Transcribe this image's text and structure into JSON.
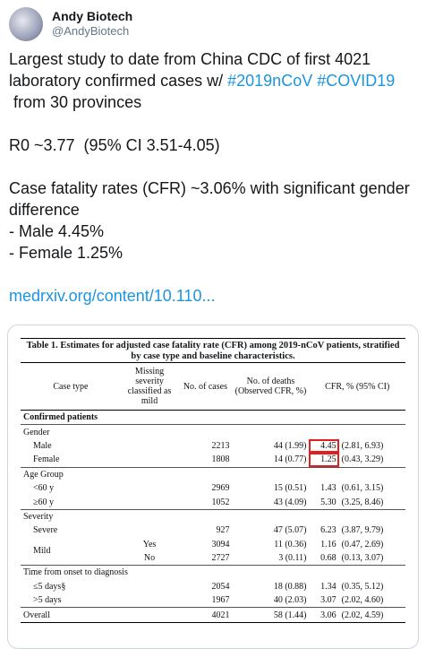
{
  "tweet": {
    "name": "Andy Biotech",
    "handle": "@AndyBiotech",
    "intro": {
      "start": "Largest study to date from China CDC of first 4021",
      "middle": "laboratory confirmed cases w/",
      "hashtags": [
        "#2019nCoV",
        "#COVID19"
      ],
      "end": "from 30 provinces"
    },
    "r0": "R0 ~3.77  (95% CI 3.51-4.05)",
    "cfr": "Case fatality rates (CFR) ~3.06% with significant gender difference",
    "male": "- Male 4.45%",
    "female": "- Female 1.25%",
    "link": "medrxiv.org/content/10.110..."
  },
  "table": {
    "title": "Table 1. Estimates for adjusted case fatality rate (CFR) among 2019-nCoV patients, stratified by case type and baseline characteristics.",
    "headers": [
      "Case type",
      "Missing severity classified as mild",
      "No. of cases",
      "No. of deaths (Observed CFR, %)",
      "CFR, % (95% CI)"
    ],
    "section": "Confirmed patients",
    "groups": [
      {
        "name": "Gender",
        "rows": [
          {
            "label": "Male",
            "cases": "2213",
            "deaths": "44 (1.99)",
            "cfr": "4.45",
            "ci": "(2.81, 6.93)",
            "highlight": true
          },
          {
            "label": "Female",
            "cases": "1808",
            "deaths": "14 (0.77)",
            "cfr": "1.25",
            "ci": "(0.43, 3.29)",
            "highlight": true
          }
        ]
      },
      {
        "name": "Age Group",
        "rows": [
          {
            "label": "<60 y",
            "cases": "2969",
            "deaths": "15 (0.51)",
            "cfr": "1.43",
            "ci": "(0.61, 3.15)"
          },
          {
            "label": "≥60 y",
            "cases": "1052",
            "deaths": "43 (4.09)",
            "cfr": "5.30",
            "ci": "(3.25, 8.46)"
          }
        ]
      },
      {
        "name": "Severity",
        "rows": [
          {
            "label": "Severe",
            "cases": "927",
            "deaths": "47 (5.07)",
            "cfr": "6.23",
            "ci": "(3.87, 9.79)"
          },
          {
            "label": "Mild",
            "sub": [
              {
                "missing": "Yes",
                "cases": "3094",
                "deaths": "11 (0.36)",
                "cfr": "1.16",
                "ci": "(0.47, 2.69)"
              },
              {
                "missing": "No",
                "cases": "2727",
                "deaths": "3 (0.11)",
                "cfr": "0.68",
                "ci": "(0.13, 3.07)"
              }
            ]
          }
        ]
      },
      {
        "name": "Time from onset to diagnosis",
        "rows": [
          {
            "label": "≤5 days§",
            "cases": "2054",
            "deaths": "18 (0.88)",
            "cfr": "1.34",
            "ci": "(0.35, 5.12)"
          },
          {
            "label": ">5 days",
            "cases": "1967",
            "deaths": "40 (2.03)",
            "cfr": "3.07",
            "ci": "(2.02, 4.60)"
          }
        ]
      }
    ],
    "overall": {
      "label": "Overall",
      "cases": "4021",
      "deaths": "58 (1.44)",
      "cfr": "3.06",
      "ci": "(2.02, 4.59)"
    }
  }
}
